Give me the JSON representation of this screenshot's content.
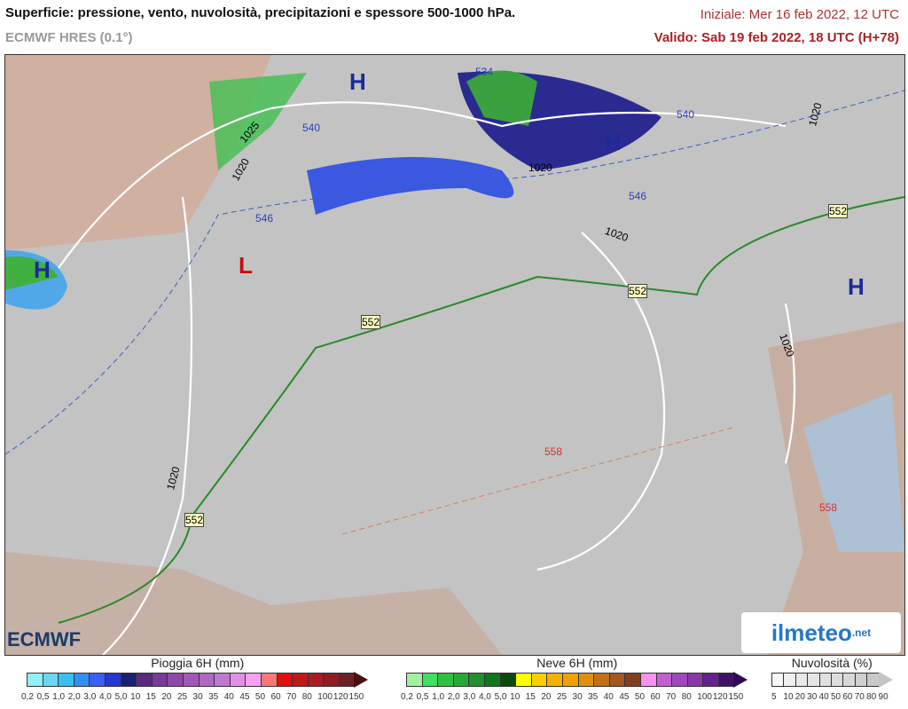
{
  "header": {
    "title": "Superficie: pressione, vento, nuvolosità, precipitazioni e spessore 500-1000 hPa.",
    "model": "ECMWF HRES (0.1°)",
    "init": "Iniziale: Mer 16 feb 2022, 12 UTC",
    "valid": "Valido: Sab 19 feb 2022, 18 UTC (H+78)"
  },
  "map": {
    "pressure_centers": [
      {
        "type": "H",
        "color": "#1a2a9a"
      },
      {
        "type": "H",
        "color": "#1a2a9a"
      },
      {
        "type": "H",
        "color": "#1a2a9a"
      },
      {
        "type": "H",
        "color": "#1a2a9a"
      },
      {
        "type": "L",
        "color": "#c01010"
      }
    ],
    "isobar_labels": [
      "1025",
      "1020",
      "1020",
      "1020",
      "1020",
      "1020",
      "1020"
    ],
    "thickness_labels": [
      "534",
      "540",
      "540",
      "546",
      "546",
      "552",
      "552",
      "552",
      "552",
      "558",
      "558"
    ]
  },
  "logos": {
    "left": "ECMWF",
    "right": "ilmeteo",
    "right_suffix": ".net"
  },
  "legend": {
    "rain": {
      "title": "Pioggia 6H (mm)",
      "ticks": [
        "0,2",
        "0,5",
        "1,0",
        "2,0",
        "3,0",
        "4,0",
        "5,0",
        "10",
        "15",
        "20",
        "25",
        "30",
        "35",
        "40",
        "45",
        "50",
        "60",
        "70",
        "80",
        "100",
        "120",
        "150"
      ],
      "colors": [
        "#8ef0f8",
        "#6cd6f4",
        "#38c0f0",
        "#3090f0",
        "#3860f8",
        "#2438d0",
        "#1a2070",
        "#5a2a80",
        "#7a3a98",
        "#9048a8",
        "#a058b8",
        "#b068c0",
        "#c078d0",
        "#e090e8",
        "#f8a0f0",
        "#f87878",
        "#e01010",
        "#c01818",
        "#a81c24",
        "#901c24",
        "#6c2028"
      ],
      "arrow": "#4a1010"
    },
    "snow": {
      "title": "Neve 6H (mm)",
      "ticks": [
        "0,2",
        "0,5",
        "1,0",
        "2,0",
        "3,0",
        "4,0",
        "5,0",
        "10",
        "15",
        "20",
        "25",
        "30",
        "35",
        "40",
        "45",
        "50",
        "60",
        "70",
        "80",
        "100",
        "120",
        "150"
      ],
      "colors": [
        "#a0f0a0",
        "#40e060",
        "#30c040",
        "#28a838",
        "#209030",
        "#107818",
        "#0a4a10",
        "#ffff00",
        "#f8d000",
        "#f8b000",
        "#f0a000",
        "#e09010",
        "#c07018",
        "#a05820",
        "#804020",
        "#f890f0",
        "#c060d0",
        "#a048c0",
        "#8838a8",
        "#682090",
        "#401068"
      ],
      "arrow": "#300858"
    },
    "cloud": {
      "title": "Nuvolosità (%)",
      "ticks": [
        "5",
        "10",
        "20",
        "30",
        "40",
        "50",
        "60",
        "70",
        "80",
        "90"
      ],
      "colors": [
        "#f8f8f8",
        "#f0f0f0",
        "#e8e8e8",
        "#e4e4e4",
        "#e0e0e0",
        "#dcdcdc",
        "#d8d8d8",
        "#d0d0d0",
        "#c8c8c8"
      ],
      "arrow": "#c4c4c4"
    }
  }
}
